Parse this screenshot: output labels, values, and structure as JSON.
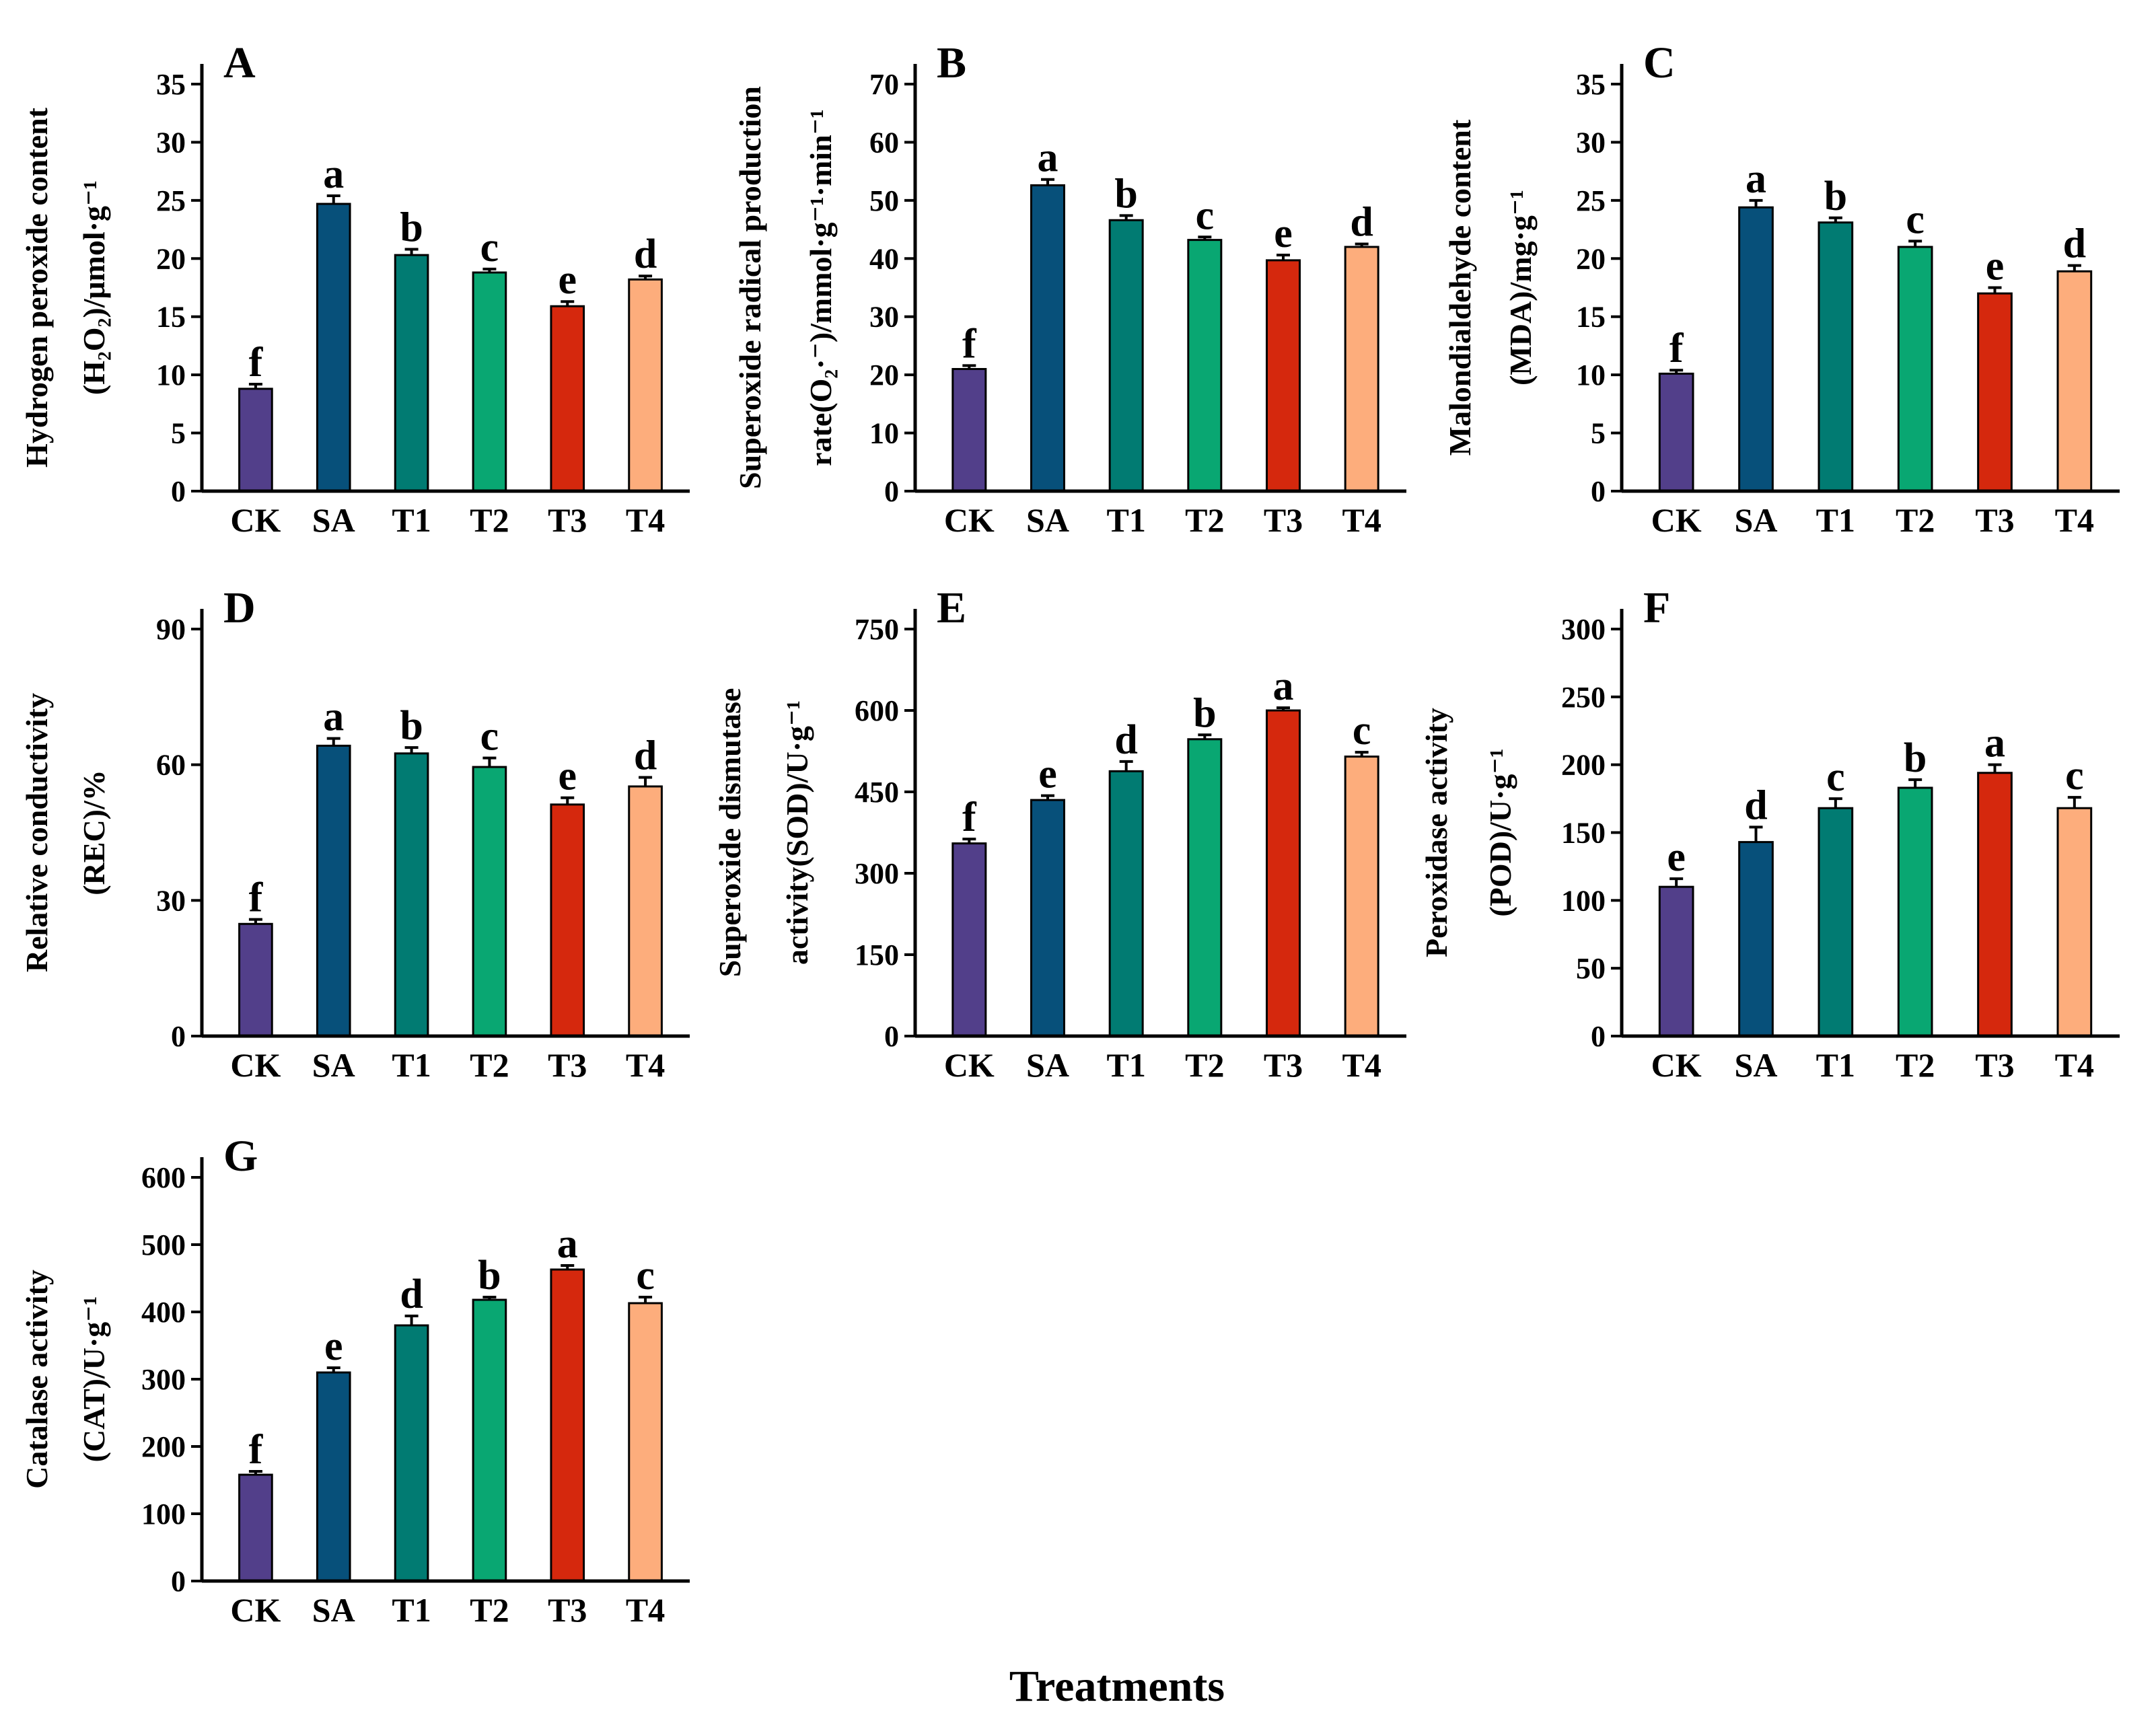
{
  "figure": {
    "x_axis_title": "Treatments"
  },
  "colors": {
    "CK": "#523f8a",
    "SA": "#07507a",
    "T1": "#017b72",
    "T2": "#09a772",
    "T3": "#d5280d",
    "T4": "#fdad7c"
  },
  "chart_data": [
    {
      "type": "bar",
      "panel": "A",
      "ylabel": [
        "Hydrogen peroxide content",
        "(H₂O₂)/μmol·g⁻¹"
      ],
      "categories": [
        "CK",
        "SA",
        "T1",
        "T2",
        "T3",
        "T4"
      ],
      "values": [
        8.8,
        24.7,
        20.3,
        18.8,
        15.9,
        18.2
      ],
      "errors": [
        0.4,
        0.7,
        0.5,
        0.3,
        0.4,
        0.3
      ],
      "significance": [
        "f",
        "a",
        "b",
        "c",
        "e",
        "d"
      ],
      "ylim": [
        0,
        35
      ],
      "yticks": [
        0,
        5,
        10,
        15,
        20,
        25,
        30,
        35
      ]
    },
    {
      "type": "bar",
      "panel": "B",
      "ylabel": [
        "Superoxide radical production",
        "rate(O₂·⁻)/mmol·g⁻¹·min⁻¹"
      ],
      "categories": [
        "CK",
        "SA",
        "T1",
        "T2",
        "T3",
        "T4"
      ],
      "values": [
        21.0,
        52.6,
        46.6,
        43.2,
        39.7,
        42.0
      ],
      "errors": [
        0.6,
        1.0,
        0.8,
        0.5,
        0.9,
        0.5
      ],
      "significance": [
        "f",
        "a",
        "b",
        "c",
        "e",
        "d"
      ],
      "ylim": [
        0,
        70
      ],
      "yticks": [
        0,
        10,
        20,
        30,
        40,
        50,
        60,
        70
      ]
    },
    {
      "type": "bar",
      "panel": "C",
      "ylabel": [
        "Malondialdehyde content",
        "(MDA)/mg·g⁻¹"
      ],
      "categories": [
        "CK",
        "SA",
        "T1",
        "T2",
        "T3",
        "T4"
      ],
      "values": [
        10.1,
        24.4,
        23.1,
        21.0,
        17.0,
        18.9
      ],
      "errors": [
        0.3,
        0.6,
        0.4,
        0.5,
        0.5,
        0.5
      ],
      "significance": [
        "f",
        "a",
        "b",
        "c",
        "e",
        "d"
      ],
      "ylim": [
        0,
        35
      ],
      "yticks": [
        0,
        5,
        10,
        15,
        20,
        25,
        30,
        35
      ]
    },
    {
      "type": "bar",
      "panel": "D",
      "ylabel": [
        "Relative conductivity",
        "(REC)/%"
      ],
      "categories": [
        "CK",
        "SA",
        "T1",
        "T2",
        "T3",
        "T4"
      ],
      "values": [
        24.8,
        64.2,
        62.5,
        59.5,
        51.2,
        55.2
      ],
      "errors": [
        1.0,
        1.6,
        1.3,
        2.0,
        1.5,
        2.0
      ],
      "significance": [
        "f",
        "a",
        "b",
        "c",
        "e",
        "d"
      ],
      "ylim": [
        0,
        90
      ],
      "yticks": [
        0,
        30,
        60,
        90
      ]
    },
    {
      "type": "bar",
      "panel": "E",
      "ylabel": [
        "Superoxide dismutase",
        "activity(SOD)/U·g⁻¹"
      ],
      "categories": [
        "CK",
        "SA",
        "T1",
        "T2",
        "T3",
        "T4"
      ],
      "values": [
        355,
        435,
        488,
        547,
        600,
        515
      ],
      "errors": [
        8,
        8,
        18,
        8,
        5,
        8
      ],
      "significance": [
        "f",
        "e",
        "d",
        "b",
        "a",
        "c"
      ],
      "ylim": [
        0,
        750
      ],
      "yticks": [
        0,
        150,
        300,
        450,
        600,
        750
      ]
    },
    {
      "type": "bar",
      "panel": "F",
      "ylabel": [
        "Peroxidase activity",
        "(POD)/U·g⁻¹"
      ],
      "categories": [
        "CK",
        "SA",
        "T1",
        "T2",
        "T3",
        "T4"
      ],
      "values": [
        110,
        143,
        168,
        183,
        194,
        168
      ],
      "errors": [
        6,
        11,
        7,
        6,
        6,
        8
      ],
      "significance": [
        "e",
        "d",
        "c",
        "b",
        "a",
        "c"
      ],
      "ylim": [
        0,
        300
      ],
      "yticks": [
        0,
        50,
        100,
        150,
        200,
        250,
        300
      ]
    },
    {
      "type": "bar",
      "panel": "G",
      "ylabel": [
        "Catalase activity",
        "(CAT)/U·g⁻¹"
      ],
      "categories": [
        "CK",
        "SA",
        "T1",
        "T2",
        "T3",
        "T4"
      ],
      "values": [
        158,
        310,
        380,
        418,
        463,
        413
      ],
      "errors": [
        5,
        7,
        14,
        4,
        6,
        9
      ],
      "significance": [
        "f",
        "e",
        "d",
        "b",
        "a",
        "c"
      ],
      "ylim": [
        0,
        600
      ],
      "yticks": [
        0,
        100,
        200,
        300,
        400,
        500,
        600
      ]
    }
  ]
}
